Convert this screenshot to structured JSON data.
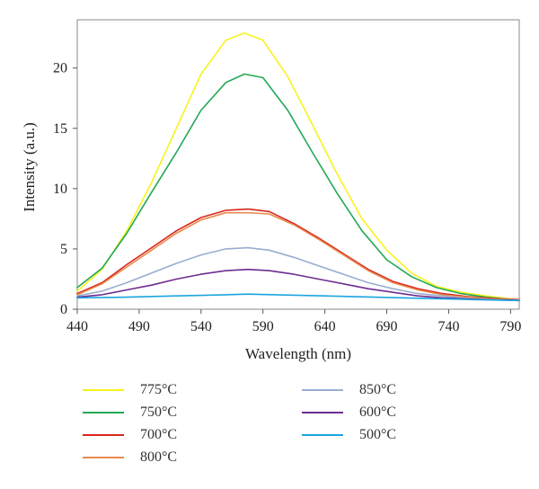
{
  "chart_data": {
    "type": "line",
    "xlabel": "Wavelength (nm)",
    "ylabel": "Intensity (a.u.)",
    "xlim": [
      440,
      797
    ],
    "ylim": [
      0,
      24
    ],
    "xticks": [
      "440",
      "490",
      "540",
      "590",
      "640",
      "690",
      "740",
      "790"
    ],
    "yticks": [
      "0",
      "5",
      "10",
      "15",
      "20"
    ],
    "grid": false,
    "legend_position": "bottom",
    "series": [
      {
        "name": "775°C",
        "color": "#f7f31c",
        "x": [
          440,
          460,
          480,
          500,
          520,
          540,
          560,
          575,
          590,
          610,
          630,
          650,
          670,
          690,
          710,
          730,
          750,
          770,
          790,
          797
        ],
        "y": [
          1.5,
          3.3,
          6.5,
          10.5,
          15.0,
          19.5,
          22.3,
          22.9,
          22.3,
          19.3,
          15.3,
          11.2,
          7.5,
          4.9,
          3.0,
          1.9,
          1.4,
          1.1,
          0.85,
          0.8
        ]
      },
      {
        "name": "750°C",
        "color": "#23a855",
        "x": [
          440,
          460,
          480,
          500,
          520,
          540,
          560,
          575,
          590,
          610,
          630,
          650,
          670,
          690,
          710,
          730,
          750,
          770,
          790,
          797
        ],
        "y": [
          1.8,
          3.4,
          6.3,
          9.7,
          13.0,
          16.5,
          18.8,
          19.5,
          19.2,
          16.5,
          13.0,
          9.6,
          6.5,
          4.1,
          2.7,
          1.8,
          1.3,
          1.0,
          0.8,
          0.75
        ]
      },
      {
        "name": "700°C",
        "color": "#d9261c",
        "x": [
          440,
          460,
          480,
          500,
          520,
          540,
          560,
          578,
          595,
          615,
          635,
          655,
          675,
          695,
          715,
          735,
          755,
          775,
          797
        ],
        "y": [
          1.3,
          2.2,
          3.7,
          5.1,
          6.5,
          7.6,
          8.2,
          8.3,
          8.1,
          7.1,
          5.9,
          4.6,
          3.3,
          2.3,
          1.7,
          1.3,
          1.05,
          0.9,
          0.8
        ]
      },
      {
        "name": "800°C",
        "color": "#e88a4e",
        "x": [
          440,
          460,
          480,
          500,
          520,
          540,
          560,
          578,
          595,
          615,
          635,
          655,
          675,
          695,
          715,
          735,
          755,
          775,
          797
        ],
        "y": [
          1.2,
          2.1,
          3.5,
          4.9,
          6.3,
          7.4,
          8.0,
          8.0,
          7.9,
          7.0,
          5.8,
          4.5,
          3.2,
          2.2,
          1.6,
          1.2,
          1.0,
          0.85,
          0.75
        ]
      },
      {
        "name": "850°C",
        "color": "#9aadd0",
        "x": [
          440,
          460,
          480,
          500,
          520,
          540,
          560,
          578,
          595,
          615,
          635,
          655,
          675,
          695,
          715,
          735,
          755,
          775,
          797
        ],
        "y": [
          1.1,
          1.5,
          2.2,
          3.0,
          3.8,
          4.5,
          5.0,
          5.1,
          4.9,
          4.3,
          3.6,
          2.9,
          2.2,
          1.7,
          1.3,
          1.1,
          0.9,
          0.8,
          0.75
        ]
      },
      {
        "name": "600°C",
        "color": "#6f2c91",
        "x": [
          440,
          460,
          480,
          500,
          520,
          540,
          560,
          578,
          595,
          615,
          635,
          655,
          675,
          695,
          715,
          735,
          755,
          775,
          797
        ],
        "y": [
          1.0,
          1.2,
          1.6,
          2.0,
          2.5,
          2.9,
          3.2,
          3.3,
          3.2,
          2.9,
          2.5,
          2.1,
          1.7,
          1.4,
          1.1,
          0.95,
          0.85,
          0.78,
          0.72
        ]
      },
      {
        "name": "500°C",
        "color": "#1ba5df",
        "x": [
          440,
          480,
          520,
          560,
          578,
          600,
          640,
          680,
          720,
          760,
          797
        ],
        "y": [
          0.95,
          1.0,
          1.1,
          1.2,
          1.25,
          1.2,
          1.1,
          1.0,
          0.9,
          0.8,
          0.72
        ]
      }
    ],
    "legend_layout": {
      "left_column": [
        "775°C",
        "750°C",
        "700°C",
        "800°C"
      ],
      "right_column": [
        "850°C",
        "600°C",
        "500°C"
      ]
    }
  }
}
